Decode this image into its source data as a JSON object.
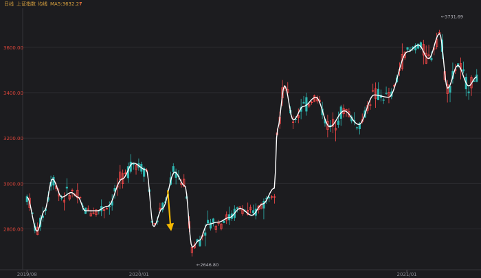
{
  "header": {
    "period": "日线",
    "index_name": "上证指数",
    "ma_type": "均线",
    "ma_readout": "MA5:3632.27",
    "ma_trend_glyph": "↑",
    "accent_color": "#d9a23f",
    "up_glyph_color": "#ff3b3b"
  },
  "chart_data": {
    "type": "candlestick",
    "title": "上证指数",
    "ylim": [
      2620,
      3760
    ],
    "yticks": [
      2800,
      3000,
      3200,
      3400,
      3600
    ],
    "ytick_labels": [
      "2800.00",
      "3000.00",
      "3200.00",
      "3400.00",
      "3600.00"
    ],
    "xtick_labels": [
      "2019/08",
      "2020/01",
      "2021/01"
    ],
    "x_range": [
      "2019-08",
      "2021-04"
    ],
    "grid": true,
    "moving_average": {
      "name": "MA5",
      "color": "#ffffff",
      "x": [
        "2019-08-01",
        "2019-08-15",
        "2019-08-25",
        "2019-09-05",
        "2019-09-18",
        "2019-10-01",
        "2019-10-10",
        "2019-10-20",
        "2019-11-05",
        "2019-11-20",
        "2019-12-10",
        "2019-12-25",
        "2020-01-12",
        "2020-01-22",
        "2020-02-03",
        "2020-02-20",
        "2020-03-05",
        "2020-03-15",
        "2020-03-25",
        "2020-04-05",
        "2020-04-20",
        "2020-05-05",
        "2020-05-20",
        "2020-06-05",
        "2020-06-20",
        "2020-07-06",
        "2020-07-10",
        "2020-07-20",
        "2020-08-01",
        "2020-08-15",
        "2020-09-01",
        "2020-09-20",
        "2020-10-10",
        "2020-10-30",
        "2020-11-20",
        "2020-12-10",
        "2021-01-05",
        "2021-01-20",
        "2021-02-03",
        "2021-02-18",
        "2021-03-01",
        "2021-03-15",
        "2021-03-30",
        "2021-04-10"
      ],
      "values": [
        2940,
        2790,
        2880,
        3020,
        2940,
        2960,
        2940,
        2880,
        2880,
        2900,
        3020,
        3090,
        3060,
        2810,
        2890,
        3050,
        2990,
        2720,
        2750,
        2820,
        2830,
        2850,
        2890,
        2860,
        2910,
        2980,
        3240,
        3430,
        3280,
        3340,
        3380,
        3250,
        3320,
        3260,
        3390,
        3380,
        3580,
        3610,
        3550,
        3660,
        3420,
        3520,
        3430,
        3470
      ],
      "offset_days": [
        0,
        14,
        24,
        35,
        48,
        61,
        70,
        80,
        96,
        111,
        131,
        146,
        164,
        174,
        186,
        203,
        217,
        227,
        237,
        248,
        263,
        278,
        293,
        309,
        324,
        340,
        344,
        354,
        366,
        380,
        397,
        416,
        436,
        456,
        477,
        497,
        523,
        538,
        552,
        567,
        578,
        592,
        607,
        618
      ]
    },
    "candles": {
      "x_start": "2019-08-01",
      "x_end": "2021-04-10",
      "count": 170,
      "up_color": "#ff4a4a",
      "down_color": "#2fb8b3"
    },
    "annotations": [
      {
        "label": "←3731.69",
        "value": 3731.69,
        "x": "2021-02-18"
      },
      {
        "label": "←2646.80",
        "value": 2646.8,
        "x": "2020-03-19"
      }
    ],
    "arrow": {
      "color": "#f5b800",
      "x": "2020-02-01",
      "from_value": 2970,
      "to_value": 2790
    }
  }
}
